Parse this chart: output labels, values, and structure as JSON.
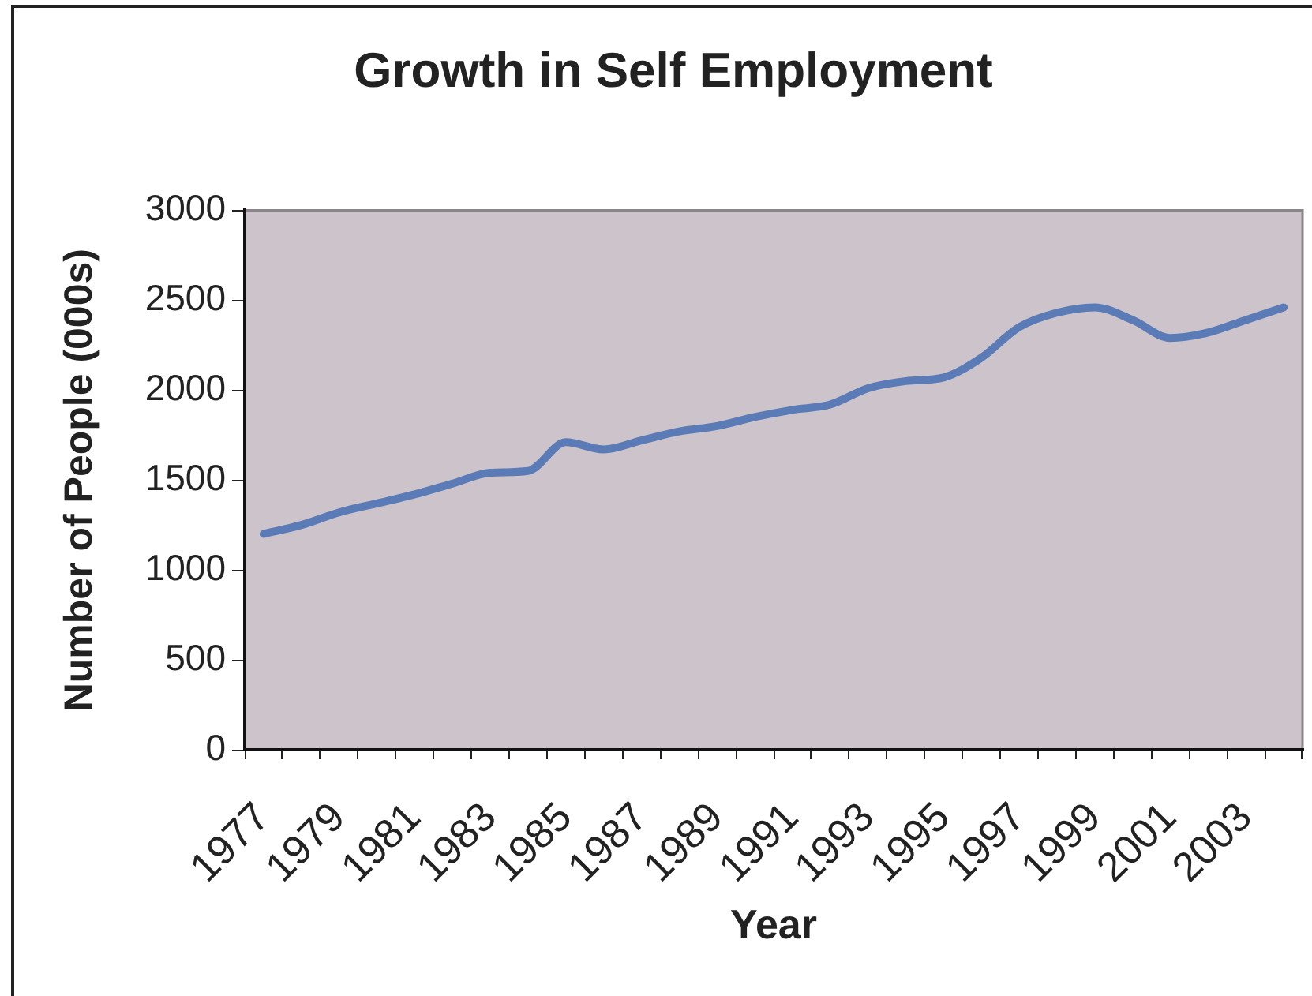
{
  "chart_data": {
    "type": "line",
    "title": "Growth in Self Employment",
    "xlabel": "Year",
    "ylabel": "Number of People (000s)",
    "categories": [
      "1977",
      null,
      "1979",
      null,
      "1981",
      null,
      "1983",
      null,
      "1985",
      null,
      "1987",
      null,
      "1989",
      null,
      "1991",
      null,
      "1993",
      null,
      "1995",
      null,
      "1997",
      null,
      "1999",
      null,
      "2001",
      null,
      "2003",
      null
    ],
    "values": [
      1200,
      1250,
      1320,
      1370,
      1420,
      1480,
      1540,
      1550,
      1710,
      1670,
      1720,
      1770,
      1800,
      1850,
      1890,
      1920,
      2010,
      2050,
      2070,
      2180,
      2350,
      2430,
      2460,
      2390,
      2290,
      2320,
      2390,
      2460
    ],
    "color": "#5b7bb6",
    "ylim": [
      0,
      3000
    ],
    "yticks": [
      0,
      500,
      1000,
      1500,
      2000,
      2500,
      3000
    ],
    "grid": false,
    "legend": false,
    "marker": "none"
  }
}
